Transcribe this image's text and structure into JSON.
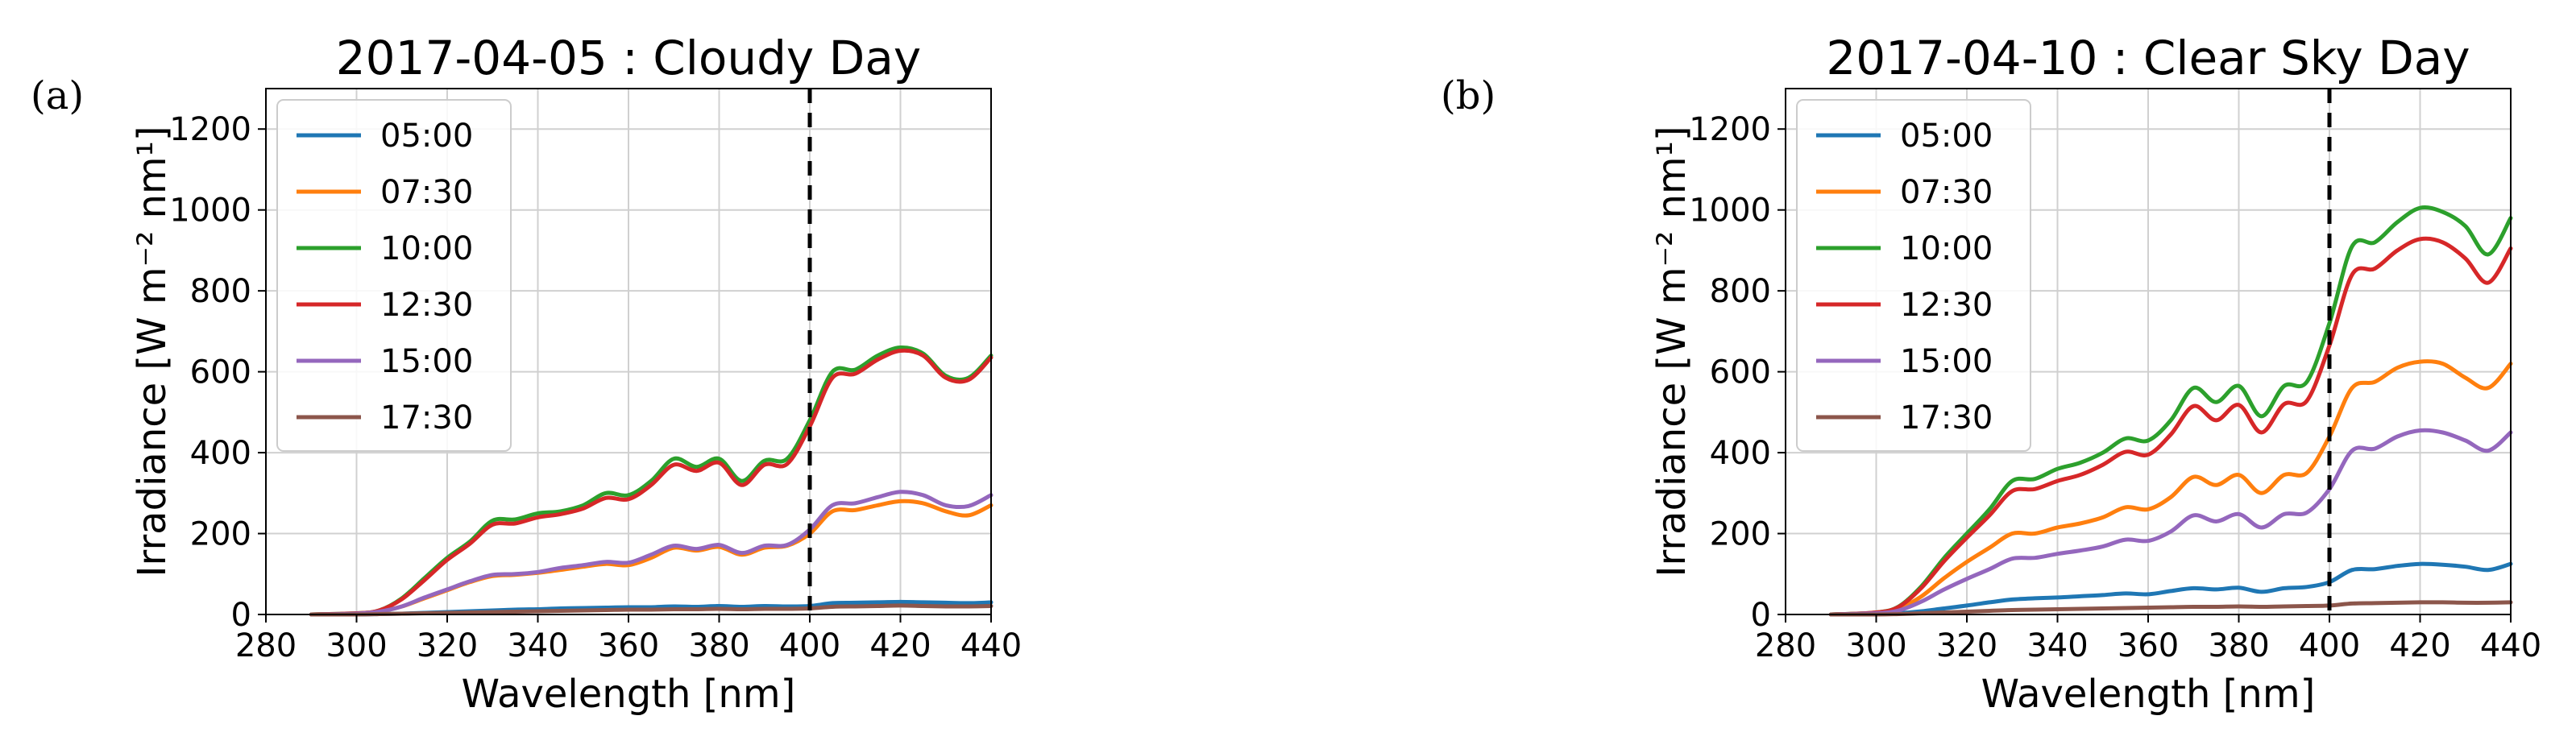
{
  "panel_letters": [
    "(a)",
    "(b)"
  ],
  "chart_data": [
    {
      "type": "line",
      "panel": "(a)",
      "title": "2017-04-05 : Cloudy Day",
      "xlabel": "Wavelength [nm]",
      "ylabel": "Irradiance [W m⁻² nm¹]",
      "xlim": [
        280,
        440
      ],
      "ylim": [
        0,
        1300
      ],
      "xticks": [
        280,
        300,
        320,
        340,
        360,
        380,
        400,
        420,
        440
      ],
      "yticks": [
        0,
        200,
        400,
        600,
        800,
        1000,
        1200
      ],
      "grid": true,
      "legend": "upper-left",
      "vline": {
        "x": 400,
        "style": "dashed",
        "color": "#000000"
      },
      "x": [
        290,
        300,
        305,
        310,
        315,
        320,
        325,
        330,
        335,
        340,
        345,
        350,
        355,
        360,
        365,
        370,
        375,
        380,
        385,
        390,
        395,
        400,
        405,
        410,
        415,
        420,
        425,
        430,
        435,
        440
      ],
      "series": [
        {
          "name": "05:00",
          "color": "#1f77b4",
          "values": [
            0,
            0,
            1,
            2,
            4,
            6,
            8,
            10,
            12,
            13,
            15,
            16,
            17,
            18,
            18,
            20,
            19,
            21,
            19,
            21,
            20,
            21,
            28,
            29,
            30,
            31,
            30,
            29,
            28,
            30
          ]
        },
        {
          "name": "07:30",
          "color": "#ff7f0e",
          "values": [
            0,
            2,
            7,
            20,
            40,
            60,
            80,
            95,
            98,
            103,
            110,
            118,
            125,
            122,
            140,
            165,
            158,
            167,
            148,
            165,
            170,
            200,
            255,
            258,
            270,
            280,
            275,
            255,
            245,
            270
          ]
        },
        {
          "name": "10:00",
          "color": "#2ca02c",
          "values": [
            0,
            3,
            10,
            40,
            90,
            140,
            180,
            232,
            235,
            250,
            255,
            270,
            300,
            295,
            330,
            385,
            365,
            385,
            330,
            380,
            385,
            480,
            600,
            605,
            640,
            660,
            645,
            590,
            585,
            640
          ]
        },
        {
          "name": "12:30",
          "color": "#d62728",
          "values": [
            0,
            3,
            10,
            38,
            85,
            135,
            175,
            222,
            225,
            240,
            248,
            262,
            288,
            285,
            320,
            370,
            355,
            375,
            320,
            370,
            372,
            465,
            585,
            595,
            630,
            652,
            640,
            585,
            580,
            635
          ]
        },
        {
          "name": "15:00",
          "color": "#9467bd",
          "values": [
            0,
            2,
            7,
            20,
            42,
            62,
            82,
            98,
            100,
            105,
            115,
            122,
            130,
            128,
            148,
            170,
            162,
            172,
            152,
            170,
            172,
            210,
            270,
            275,
            290,
            303,
            295,
            270,
            268,
            295
          ]
        },
        {
          "name": "17:30",
          "color": "#8c564b",
          "values": [
            0,
            0,
            1,
            2,
            3,
            4,
            5,
            6,
            7,
            8,
            9,
            10,
            11,
            12,
            12,
            13,
            13,
            14,
            13,
            14,
            14,
            15,
            19,
            20,
            21,
            22,
            21,
            20,
            20,
            21
          ]
        }
      ]
    },
    {
      "type": "line",
      "panel": "(b)",
      "title": "2017-04-10 : Clear Sky Day",
      "xlabel": "Wavelength [nm]",
      "ylabel": "Irradiance [W m⁻² nm¹]",
      "xlim": [
        280,
        440
      ],
      "ylim": [
        0,
        1300
      ],
      "xticks": [
        280,
        300,
        320,
        340,
        360,
        380,
        400,
        420,
        440
      ],
      "yticks": [
        0,
        200,
        400,
        600,
        800,
        1000,
        1200
      ],
      "grid": true,
      "legend": "upper-left",
      "vline": {
        "x": 400,
        "style": "dashed",
        "color": "#000000"
      },
      "x": [
        290,
        300,
        305,
        310,
        315,
        320,
        325,
        330,
        335,
        340,
        345,
        350,
        355,
        360,
        365,
        370,
        375,
        380,
        385,
        390,
        395,
        400,
        405,
        410,
        415,
        420,
        425,
        430,
        435,
        440
      ],
      "series": [
        {
          "name": "05:00",
          "color": "#1f77b4",
          "values": [
            0,
            1,
            3,
            8,
            15,
            22,
            30,
            37,
            40,
            42,
            45,
            48,
            52,
            50,
            58,
            65,
            62,
            66,
            56,
            65,
            68,
            80,
            110,
            112,
            120,
            125,
            123,
            118,
            110,
            125
          ]
        },
        {
          "name": "07:30",
          "color": "#ff7f0e",
          "values": [
            0,
            4,
            15,
            45,
            90,
            130,
            165,
            200,
            200,
            215,
            225,
            240,
            265,
            260,
            290,
            340,
            320,
            345,
            300,
            345,
            350,
            440,
            560,
            575,
            610,
            625,
            620,
            585,
            560,
            620
          ]
        },
        {
          "name": "10:00",
          "color": "#2ca02c",
          "values": [
            0,
            5,
            20,
            70,
            140,
            200,
            260,
            330,
            335,
            360,
            375,
            400,
            435,
            430,
            480,
            560,
            525,
            565,
            490,
            565,
            575,
            720,
            910,
            920,
            970,
            1005,
            995,
            960,
            890,
            980
          ]
        },
        {
          "name": "12:30",
          "color": "#d62728",
          "values": [
            0,
            5,
            19,
            66,
            132,
            190,
            245,
            305,
            310,
            330,
            345,
            370,
            402,
            395,
            445,
            515,
            480,
            518,
            450,
            520,
            528,
            665,
            840,
            855,
            900,
            928,
            920,
            880,
            820,
            905
          ]
        },
        {
          "name": "15:00",
          "color": "#9467bd",
          "values": [
            0,
            3,
            10,
            32,
            62,
            88,
            112,
            138,
            140,
            150,
            158,
            168,
            185,
            182,
            205,
            245,
            230,
            248,
            215,
            248,
            252,
            310,
            405,
            410,
            440,
            455,
            450,
            430,
            405,
            450
          ]
        },
        {
          "name": "17:30",
          "color": "#8c564b",
          "values": [
            0,
            0,
            1,
            3,
            5,
            7,
            9,
            11,
            12,
            13,
            14,
            15,
            16,
            17,
            18,
            19,
            19,
            20,
            19,
            20,
            21,
            22,
            27,
            28,
            29,
            30,
            30,
            29,
            29,
            30
          ]
        }
      ]
    }
  ]
}
